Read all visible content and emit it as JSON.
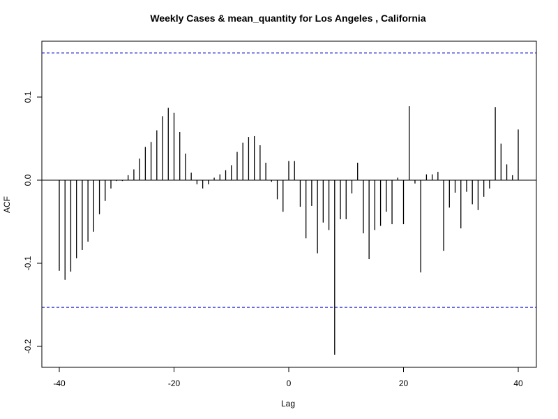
{
  "chart_data": {
    "type": "bar",
    "title": "Weekly Cases & mean_quantity for Los Angeles , California",
    "xlabel": "Lag",
    "ylabel": "ACF",
    "xlim": [
      -40,
      40
    ],
    "ylim": [
      -0.21,
      0.15
    ],
    "x_ticks": [
      -40,
      -20,
      0,
      20,
      40
    ],
    "x_tick_labels": [
      "-40",
      "-20",
      "0",
      "20",
      "40"
    ],
    "y_ticks": [
      -0.2,
      -0.1,
      0.0,
      0.1
    ],
    "y_tick_labels": [
      "-0.2",
      "-0.1",
      "0.0",
      "0.1"
    ],
    "confidence_bound": 0.153,
    "zero_line": true,
    "colors": {
      "bars": "#000000",
      "bounds": "#0000cc",
      "axis": "#000000"
    },
    "lags": [
      -40,
      -39,
      -38,
      -37,
      -36,
      -35,
      -34,
      -33,
      -32,
      -31,
      -30,
      -29,
      -28,
      -27,
      -26,
      -25,
      -24,
      -23,
      -22,
      -21,
      -20,
      -19,
      -18,
      -17,
      -16,
      -15,
      -14,
      -13,
      -12,
      -11,
      -10,
      -9,
      -8,
      -7,
      -6,
      -5,
      -4,
      -3,
      -2,
      -1,
      0,
      1,
      2,
      3,
      4,
      5,
      6,
      7,
      8,
      9,
      10,
      11,
      12,
      13,
      14,
      15,
      16,
      17,
      18,
      19,
      20,
      21,
      22,
      23,
      24,
      25,
      26,
      27,
      28,
      29,
      30,
      31,
      32,
      33,
      34,
      35,
      36,
      37,
      38,
      39,
      40
    ],
    "values": [
      -0.109,
      -0.12,
      -0.11,
      -0.094,
      -0.084,
      -0.074,
      -0.062,
      -0.041,
      -0.025,
      -0.01,
      -0.001,
      -0.001,
      0.006,
      0.013,
      0.026,
      0.04,
      0.046,
      0.06,
      0.077,
      0.087,
      0.081,
      0.058,
      0.032,
      0.009,
      -0.005,
      -0.01,
      -0.005,
      0.003,
      0.007,
      0.012,
      0.018,
      0.034,
      0.045,
      0.052,
      0.053,
      0.042,
      0.021,
      -0.002,
      -0.023,
      -0.038,
      0.023,
      0.023,
      -0.032,
      -0.07,
      -0.031,
      -0.088,
      -0.051,
      -0.06,
      -0.21,
      -0.047,
      -0.047,
      -0.016,
      0.021,
      -0.064,
      -0.095,
      -0.06,
      -0.055,
      -0.038,
      -0.053,
      0.003,
      -0.053,
      0.089,
      -0.004,
      -0.111,
      0.007,
      0.007,
      0.01,
      -0.085,
      -0.033,
      -0.015,
      -0.058,
      -0.014,
      -0.029,
      -0.036,
      -0.02,
      -0.01,
      0.088,
      0.044,
      0.019,
      0.006,
      0.061
    ]
  }
}
